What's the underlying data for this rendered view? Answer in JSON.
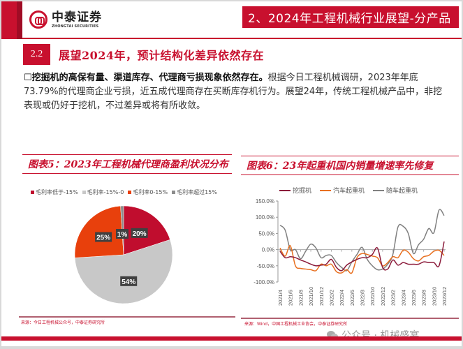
{
  "header": {
    "logo_cn": "中泰证券",
    "logo_en": "ZHONGTAI SECURITIES",
    "section_title": "2、2024年工程机械行业展望-分产品"
  },
  "subsection": {
    "number": "2.2",
    "title": "展望2024年，预计结构化差异依然存在"
  },
  "body": {
    "bullet": "☐",
    "lead": "挖掘机的高保有量、渠道库存、代理商亏损现象依然存在。",
    "text": "根据今日工程机械调研，2023年年底73.79%的代理商企业亏损，近五成代理商存在买断库存机行为。展望24年，传统工程机械产品中，非挖表现或仍好于挖机，不过差异或将有所收敛。"
  },
  "chart5": {
    "title": "图表5：2023年工程机械代理商盈利状况分布",
    "source": "来源：今日工程机械公众号，中泰证券研究所"
  },
  "chart6": {
    "title": "图表6：23年起重机国内销量增速率先修复",
    "source": "来源：Wind，中国工程机械工业协会，中泰证券研究所"
  },
  "watermark": "公众号 · 机械盛宴",
  "chart_data": [
    {
      "type": "pie",
      "title": "图表5：2023年工程机械代理商盈利状况分布",
      "categories": [
        "毛利率低于-15%",
        "毛利率-15%-0",
        "毛利率0-15%",
        "毛利率超过15%"
      ],
      "values": [
        20,
        54,
        25,
        1
      ],
      "labels": [
        "20%",
        "54%",
        "25%",
        "1%"
      ],
      "colors": [
        "#c00d2e",
        "#c8c8c8",
        "#e8400c",
        "#8c8c8c"
      ],
      "legend_position": "top"
    },
    {
      "type": "line",
      "title": "图表6：23年起重机国内销量增速率先修复",
      "xlabel": "",
      "ylabel": "",
      "ylim": [
        -100,
        150
      ],
      "yticks": [
        "150.0%",
        "100.0%",
        "50.0%",
        "0.0%",
        "-50.0%",
        "-100.0%"
      ],
      "xticks": [
        "2021/4",
        "2021/6",
        "2021/8",
        "2021/10",
        "2021/12",
        "2022/2",
        "2022/4",
        "2022/6",
        "2022/8",
        "2022/10",
        "2022/12",
        "2023/2",
        "2023/4",
        "2023/6",
        "2023/8",
        "2023/10",
        "2023/12"
      ],
      "x": [
        "2021/4",
        "2021/5",
        "2021/6",
        "2021/7",
        "2021/8",
        "2021/9",
        "2021/10",
        "2021/11",
        "2021/12",
        "2022/1",
        "2022/2",
        "2022/3",
        "2022/4",
        "2022/5",
        "2022/6",
        "2022/7",
        "2022/8",
        "2022/9",
        "2022/10",
        "2022/11",
        "2022/12",
        "2023/1",
        "2023/2",
        "2023/3",
        "2023/4",
        "2023/5",
        "2023/6",
        "2023/7",
        "2023/8",
        "2023/9",
        "2023/10",
        "2023/11",
        "2023/12"
      ],
      "legend_position": "top",
      "grid": false,
      "series": [
        {
          "name": "挖掘机",
          "color": "#8b1a3a",
          "values": [
            -5,
            -25,
            -22,
            -25,
            -32,
            -38,
            -45,
            -50,
            -48,
            -45,
            -30,
            -55,
            -65,
            -48,
            -38,
            -30,
            -25,
            -25,
            -15,
            5,
            -55,
            -60,
            -32,
            -48,
            -40,
            -45,
            -45,
            -45,
            -38,
            -40,
            -40,
            -50,
            25
          ]
        },
        {
          "name": "汽车起重机",
          "color": "#e87020",
          "values": [
            5,
            -20,
            12,
            -50,
            -58,
            -60,
            -62,
            -65,
            -45,
            -50,
            -45,
            -68,
            -72,
            -62,
            -72,
            -25,
            -12,
            -15,
            -20,
            -25,
            -50,
            -40,
            -22,
            -25,
            -2,
            -8,
            -28,
            -35,
            -22,
            -18,
            -5,
            -2,
            -18
          ]
        },
        {
          "name": "随车起重机",
          "color": "#808080",
          "values": [
            75,
            60,
            0,
            0,
            -28,
            -5,
            17,
            5,
            -25,
            -18,
            -18,
            -40,
            -55,
            -65,
            -38,
            -15,
            7,
            -30,
            -50,
            -62,
            -60,
            -45,
            -15,
            70,
            72,
            50,
            -12,
            15,
            32,
            65,
            52,
            122,
            105
          ]
        }
      ]
    }
  ]
}
